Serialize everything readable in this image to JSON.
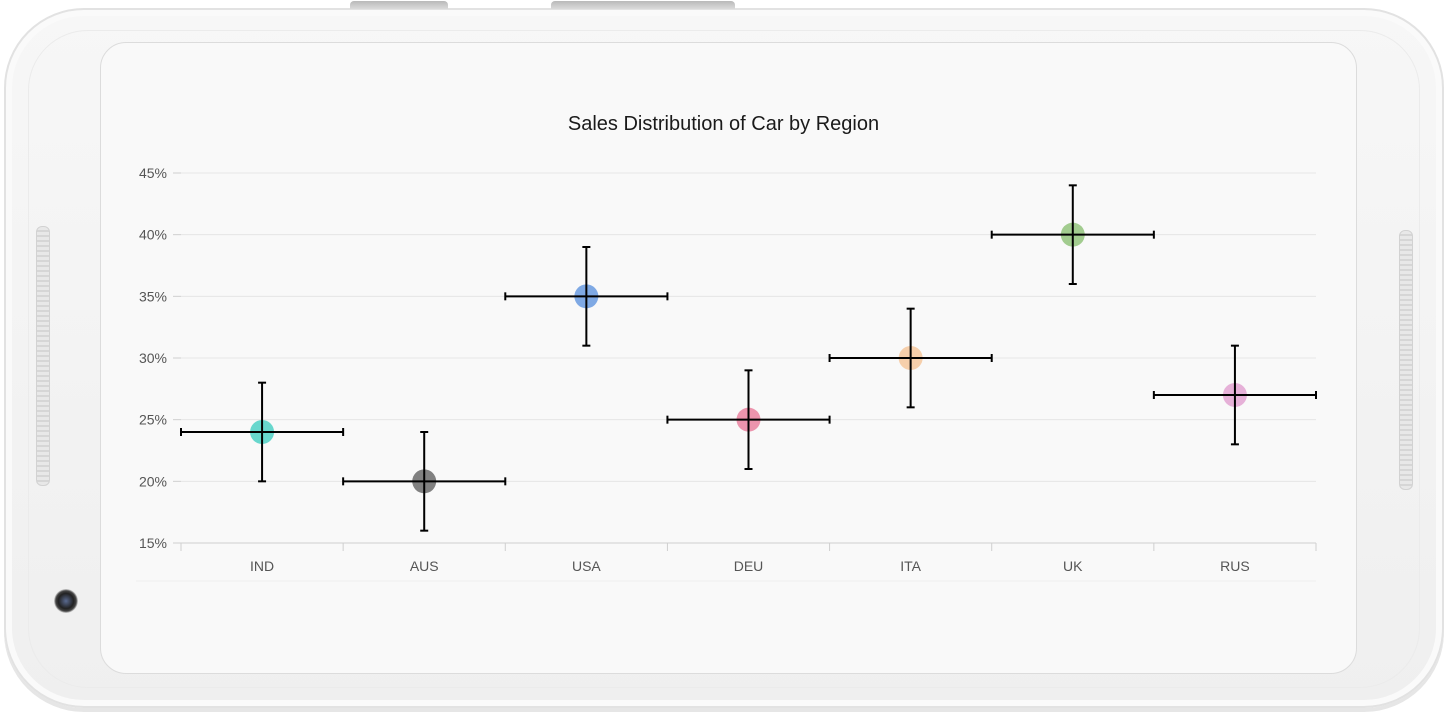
{
  "chart_data": {
    "type": "scatter",
    "title": "Sales Distribution of Car by Region",
    "xlabel": "",
    "ylabel": "",
    "categories": [
      "IND",
      "AUS",
      "USA",
      "DEU",
      "ITA",
      "UK",
      "RUS"
    ],
    "values": [
      24,
      20,
      35,
      25,
      30,
      40,
      27
    ],
    "y_error": 4,
    "x_error_categories": 0.5,
    "ylim": [
      15,
      45
    ],
    "y_ticks": [
      "15%",
      "20%",
      "25%",
      "30%",
      "35%",
      "40%",
      "45%"
    ],
    "y_tick_values": [
      15,
      20,
      25,
      30,
      35,
      40,
      45
    ],
    "grid": true,
    "point_colors": [
      "#4fd1c5",
      "#6b6b6b",
      "#6a9be0",
      "#ea82a0",
      "#f6c89e",
      "#93c47d",
      "#e3a5d2"
    ],
    "error_bar_color": "#000000"
  }
}
